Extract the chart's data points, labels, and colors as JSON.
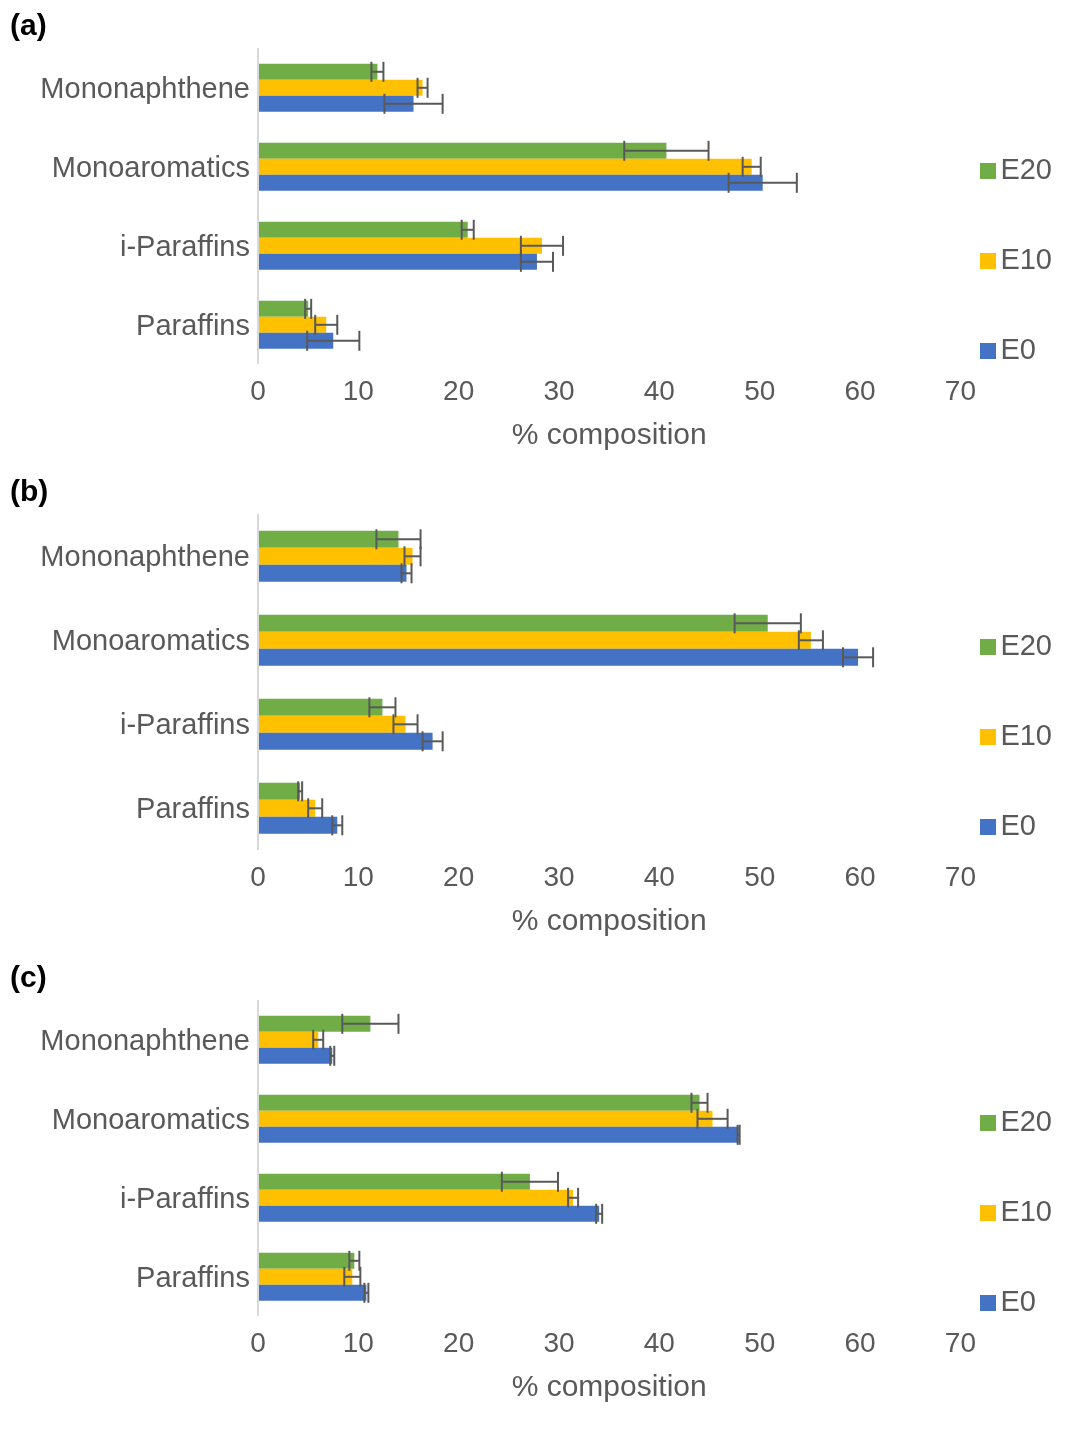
{
  "chart_data": [
    {
      "type": "bar",
      "orientation": "horizontal",
      "title": "(a)",
      "xlabel": "% composition",
      "categories": [
        "Mononaphthene",
        "Monoaromatics",
        "i-Paraffins",
        "Paraffins"
      ],
      "xlim": [
        0,
        70
      ],
      "xticks": [
        0,
        10,
        20,
        30,
        40,
        50,
        60,
        70
      ],
      "legend": "right",
      "grid": false,
      "series": [
        {
          "name": "E20",
          "color": "#70ad47",
          "values": [
            11.9,
            40.7,
            20.9,
            5.0
          ],
          "errors": [
            0.6,
            4.2,
            0.6,
            0.3
          ]
        },
        {
          "name": "E10",
          "color": "#ffc000",
          "values": [
            16.4,
            49.2,
            28.3,
            6.8
          ],
          "errors": [
            0.5,
            0.9,
            2.1,
            1.1
          ]
        },
        {
          "name": "E0",
          "color": "#4472c4",
          "values": [
            15.5,
            50.3,
            27.8,
            7.5
          ],
          "errors": [
            2.9,
            3.4,
            1.6,
            2.6
          ]
        }
      ]
    },
    {
      "type": "bar",
      "orientation": "horizontal",
      "title": "(b)",
      "xlabel": "% composition",
      "categories": [
        "Mononaphthene",
        "Monoaromatics",
        "i-Paraffins",
        "Paraffins"
      ],
      "xlim": [
        0,
        70
      ],
      "xticks": [
        0,
        10,
        20,
        30,
        40,
        50,
        60,
        70
      ],
      "legend": "right",
      "grid": false,
      "series": [
        {
          "name": "E20",
          "color": "#70ad47",
          "values": [
            14.0,
            50.8,
            12.4,
            4.2
          ],
          "errors": [
            2.2,
            3.3,
            1.3,
            0.2
          ]
        },
        {
          "name": "E10",
          "color": "#ffc000",
          "values": [
            15.4,
            55.1,
            14.7,
            5.7
          ],
          "errors": [
            0.8,
            1.2,
            1.2,
            0.7
          ]
        },
        {
          "name": "E0",
          "color": "#4472c4",
          "values": [
            14.8,
            59.8,
            17.4,
            7.9
          ],
          "errors": [
            0.5,
            1.5,
            1.0,
            0.5
          ]
        }
      ]
    },
    {
      "type": "bar",
      "orientation": "horizontal",
      "title": "(c)",
      "xlabel": "% composition",
      "categories": [
        "Mononaphthene",
        "Monoaromatics",
        "i-Paraffins",
        "Paraffins"
      ],
      "xlim": [
        0,
        70
      ],
      "xticks": [
        0,
        10,
        20,
        30,
        40,
        50,
        60,
        70
      ],
      "legend": "right",
      "grid": false,
      "series": [
        {
          "name": "E20",
          "color": "#70ad47",
          "values": [
            11.2,
            44.0,
            27.1,
            9.6
          ],
          "errors": [
            2.8,
            0.8,
            2.8,
            0.5
          ]
        },
        {
          "name": "E10",
          "color": "#ffc000",
          "values": [
            6.0,
            45.3,
            31.4,
            9.4
          ],
          "errors": [
            0.5,
            1.5,
            0.5,
            0.8
          ]
        },
        {
          "name": "E0",
          "color": "#4472c4",
          "values": [
            7.4,
            47.9,
            34.0,
            10.8
          ],
          "errors": [
            0.2,
            0.1,
            0.3,
            0.2
          ]
        }
      ]
    }
  ]
}
